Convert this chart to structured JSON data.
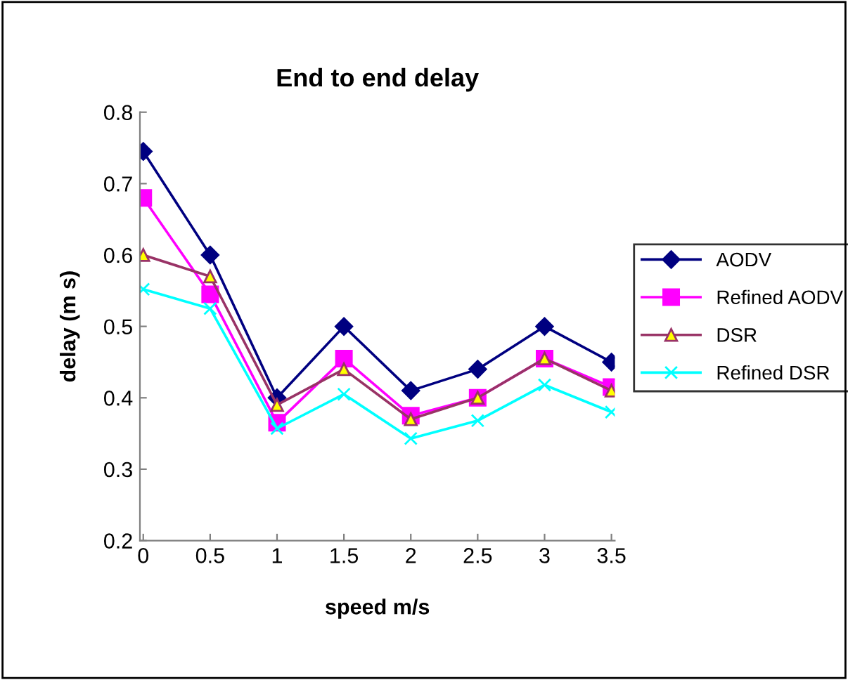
{
  "chart_data": {
    "type": "line",
    "title": "End to end delay",
    "xlabel": "speed m/s",
    "ylabel": "delay (m s)",
    "categories": [
      "0",
      "0.5",
      "1",
      "1.5",
      "2",
      "2.5",
      "3",
      "3.5"
    ],
    "series": [
      {
        "name": "AODV",
        "color": "#000080",
        "marker": "diamond",
        "values": [
          0.745,
          0.6,
          0.4,
          0.5,
          0.41,
          0.44,
          0.5,
          0.45
        ]
      },
      {
        "name": "Refined AODV",
        "color": "#ff00ff",
        "marker": "square",
        "values": [
          0.68,
          0.545,
          0.365,
          0.455,
          0.375,
          0.4,
          0.455,
          0.415
        ]
      },
      {
        "name": "DSR",
        "color": "#993366",
        "marker": "triangle",
        "values": [
          0.6,
          0.57,
          0.39,
          0.44,
          0.37,
          0.4,
          0.455,
          0.41
        ]
      },
      {
        "name": "Refined DSR",
        "color": "#00ffff",
        "marker": "cross",
        "values": [
          0.552,
          0.525,
          0.357,
          0.405,
          0.343,
          0.368,
          0.418,
          0.38
        ]
      }
    ],
    "ylim": [
      0.2,
      0.8
    ],
    "yticks": [
      0.2,
      0.3,
      0.4,
      0.5,
      0.6,
      0.7,
      0.8
    ],
    "grid": false,
    "legend": "right",
    "line_style": "solid"
  }
}
